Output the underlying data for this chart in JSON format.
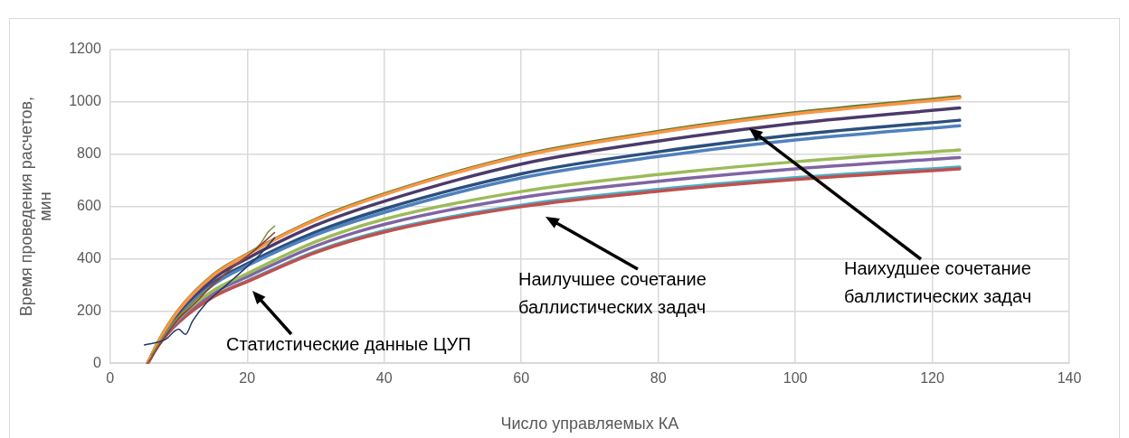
{
  "chart_data": {
    "type": "line",
    "xlabel": "Число управляемых КА",
    "ylabel": "Время проведения расчетов, мин",
    "xlim": [
      0,
      140
    ],
    "xticks": [
      0,
      20,
      40,
      60,
      80,
      100,
      120,
      140
    ],
    "ylim": [
      0,
      1200
    ],
    "yticks": [
      0,
      200,
      400,
      600,
      800,
      1000,
      1200
    ],
    "grid": true,
    "legend": false,
    "marker": "none",
    "line_style": "solid",
    "series": [
      {
        "color": "#1f3864",
        "x": [
          5,
          8,
          10,
          11,
          12,
          14,
          17,
          20,
          22,
          24
        ],
        "values": [
          70,
          90,
          130,
          110,
          160,
          230,
          300,
          370,
          420,
          480
        ]
      },
      {
        "color": "#943634",
        "x": [
          5.5,
          8,
          10,
          12,
          15,
          18,
          21,
          24
        ],
        "values": [
          0,
          100,
          170,
          220,
          300,
          370,
          430,
          500
        ]
      },
      {
        "color": "#76923c",
        "x": [
          6,
          9,
          12,
          15,
          18,
          20,
          22,
          23,
          24
        ],
        "values": [
          30,
          150,
          230,
          300,
          370,
          410,
          460,
          500,
          525
        ]
      },
      {
        "color": "#f79646",
        "x": [
          5.5,
          7,
          10,
          15,
          20,
          30,
          40,
          60,
          80,
          100,
          124
        ],
        "values": [
          0,
          81,
          203,
          335,
          416,
          548,
          645,
          792,
          883,
          954,
          1015
        ]
      },
      {
        "color": "#5f7a30",
        "x": [
          5.5,
          7,
          10,
          15,
          20,
          30,
          40,
          60,
          80,
          100,
          124
        ],
        "values": [
          0,
          82,
          204,
          337,
          418,
          551,
          648,
          796,
          887,
          959,
          1020
        ]
      },
      {
        "color": "#4b3a6b",
        "x": [
          5.5,
          7,
          10,
          15,
          20,
          30,
          40,
          60,
          80,
          100,
          124
        ],
        "values": [
          0,
          78,
          195,
          322,
          401,
          528,
          620,
          762,
          850,
          918,
          977
        ]
      },
      {
        "color": "#4f81bd",
        "x": [
          5.5,
          7,
          10,
          15,
          20,
          30,
          40,
          60,
          80,
          100,
          124
        ],
        "values": [
          0,
          73,
          182,
          300,
          373,
          491,
          577,
          709,
          791,
          854,
          909
        ]
      },
      {
        "color": "#2c4f7c",
        "x": [
          5.5,
          7,
          10,
          15,
          20,
          30,
          40,
          60,
          80,
          100,
          124
        ],
        "values": [
          0,
          74,
          186,
          307,
          381,
          502,
          591,
          725,
          809,
          874,
          930
        ]
      },
      {
        "color": "#9bbb59",
        "x": [
          5.5,
          7,
          10,
          15,
          20,
          30,
          40,
          60,
          80,
          100,
          124
        ],
        "values": [
          0,
          73,
          171,
          277,
          343,
          465,
          551,
          657,
          722,
          771,
          816
        ]
      },
      {
        "color": "#8064a2",
        "x": [
          5.5,
          7,
          10,
          15,
          20,
          30,
          40,
          60,
          80,
          100,
          124
        ],
        "values": [
          0,
          71,
          165,
          268,
          331,
          449,
          531,
          634,
          696,
          744,
          787
        ]
      },
      {
        "color": "#c0504d",
        "x": [
          5.5,
          7,
          10,
          15,
          20,
          30,
          40,
          60,
          80,
          100,
          124
        ],
        "values": [
          0,
          67,
          156,
          253,
          312,
          424,
          502,
          599,
          658,
          703,
          744
        ]
      },
      {
        "color": "#4bacc6",
        "x": [
          5.5,
          7,
          10,
          15,
          20,
          30,
          40,
          60,
          80,
          100,
          124
        ],
        "values": [
          0,
          68,
          158,
          255,
          315,
          428,
          507,
          605,
          665,
          710,
          751
        ]
      }
    ],
    "annotations": [
      "Статистические данные ЦУП",
      "Наилучшее сочетание\nбаллистических задач",
      "Наихудшее сочетание\nбаллистических задач"
    ]
  }
}
